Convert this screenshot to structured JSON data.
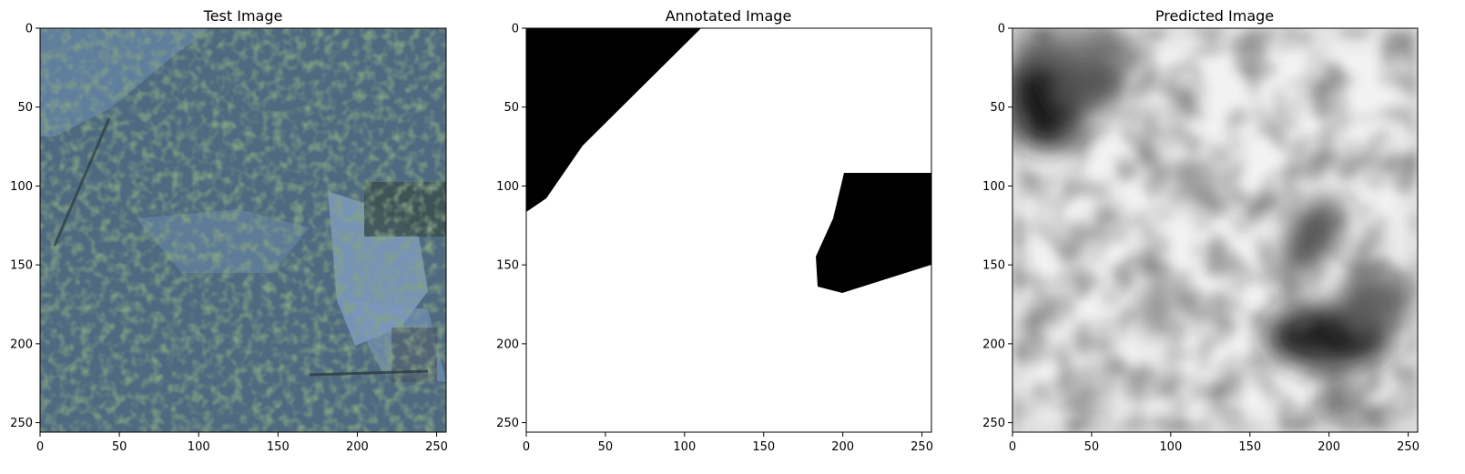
{
  "figure": {
    "panels": [
      {
        "title": "Test Image",
        "kind": "satellite-photo",
        "xlim": [
          0,
          256
        ],
        "ylim": [
          256,
          0
        ],
        "x_ticks": [
          "0",
          "50",
          "100",
          "150",
          "200",
          "250"
        ],
        "y_ticks": [
          "0",
          "50",
          "100",
          "150",
          "200",
          "250"
        ]
      },
      {
        "title": "Annotated Image",
        "kind": "binary-mask",
        "xlim": [
          0,
          256
        ],
        "ylim": [
          256,
          0
        ],
        "x_ticks": [
          "0",
          "50",
          "100",
          "150",
          "200",
          "250"
        ],
        "y_ticks": [
          "0",
          "50",
          "100",
          "150",
          "200",
          "250"
        ]
      },
      {
        "title": "Predicted Image",
        "kind": "grayscale-prediction",
        "xlim": [
          0,
          256
        ],
        "ylim": [
          256,
          0
        ],
        "x_ticks": [
          "0",
          "50",
          "100",
          "150",
          "200",
          "250"
        ],
        "y_ticks": [
          "0",
          "50",
          "100",
          "150",
          "200",
          "250"
        ]
      }
    ],
    "colors": {
      "satellite_base": "#4f6a80",
      "vegetation": "#3b5a3a",
      "bare_ground": "#6f8fb5",
      "mask_foreground": "#000000",
      "mask_background": "#ffffff",
      "prediction_dark": "#1a1a1a",
      "prediction_light": "#f2f2f2"
    }
  }
}
